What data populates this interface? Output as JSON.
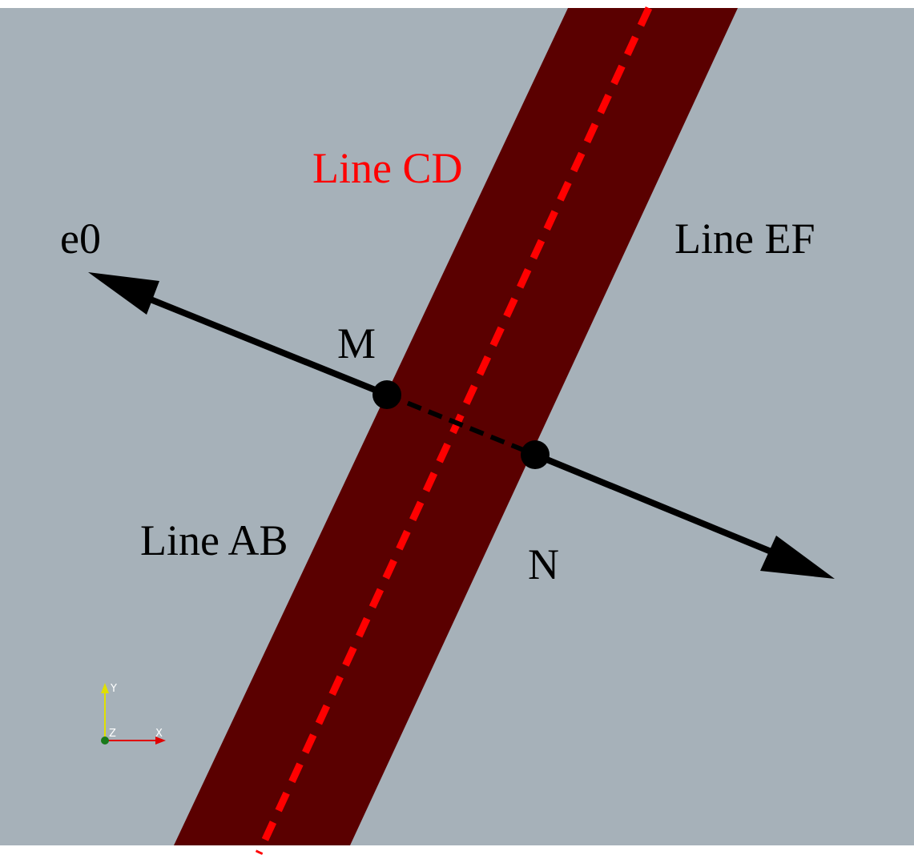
{
  "labels": {
    "line_cd": "Line CD",
    "line_ef": "Line EF",
    "line_ab": "Line AB",
    "e0": "e0",
    "point_m": "M",
    "point_n": "N"
  },
  "axes_widget": {
    "y": "Y",
    "x": "X",
    "z": "Z"
  },
  "colors": {
    "background": "#a6b1b9",
    "band": "#5a0000",
    "centerline": "#ff0000",
    "line_cd_label": "#ff0000",
    "arrows": "#000000",
    "axis_y": "#e0e000",
    "axis_x": "#e00000",
    "axis_z": "#1a7a1a"
  }
}
